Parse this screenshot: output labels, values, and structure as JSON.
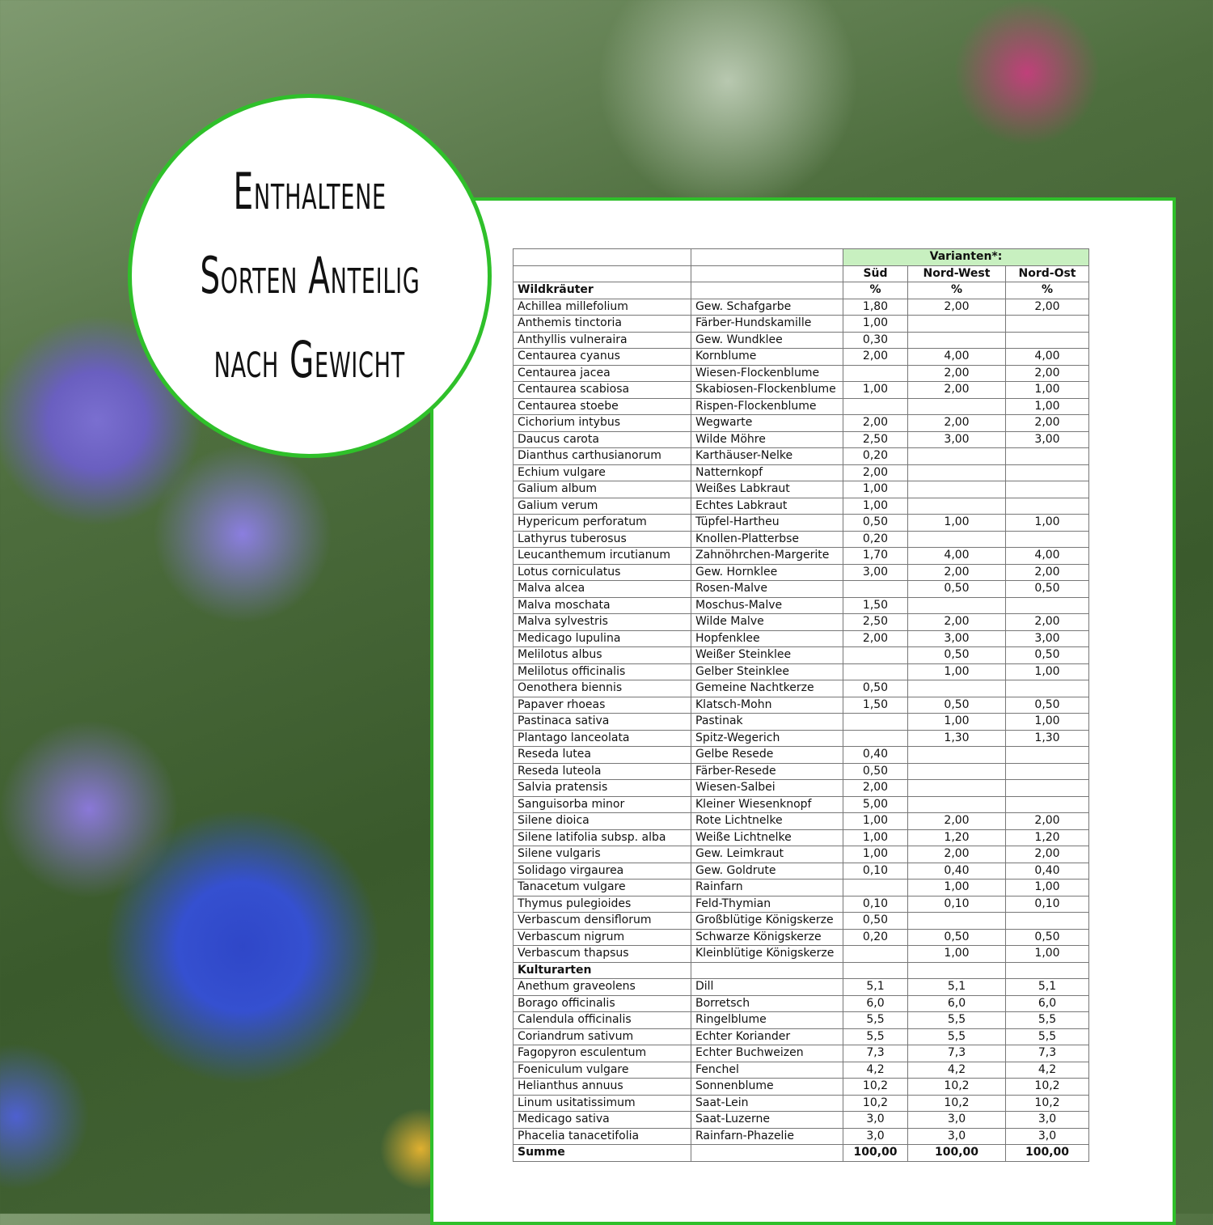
{
  "title_lines": [
    "Enthaltene",
    "Sorten Anteilig",
    "nach Gewicht"
  ],
  "colors": {
    "accent_green": "#2fc02a",
    "header_green": "#c8f0c0"
  },
  "table": {
    "variants_label": "Varianten*:",
    "columns": [
      "Süd",
      "Nord-West",
      "Nord-Ost"
    ],
    "unit": "%",
    "sections": [
      {
        "title": "Wildkräuter",
        "rows": [
          [
            "Achillea millefolium",
            "Gew. Schafgarbe",
            "1,80",
            "2,00",
            "2,00"
          ],
          [
            "Anthemis tinctoria",
            "Färber-Hundskamille",
            "1,00",
            "",
            ""
          ],
          [
            "Anthyllis vulneraira",
            "Gew. Wundklee",
            "0,30",
            "",
            ""
          ],
          [
            "Centaurea cyanus",
            "Kornblume",
            "2,00",
            "4,00",
            "4,00"
          ],
          [
            "Centaurea jacea",
            "Wiesen-Flockenblume",
            "",
            "2,00",
            "2,00"
          ],
          [
            "Centaurea scabiosa",
            "Skabiosen-Flockenblume",
            "1,00",
            "2,00",
            "1,00"
          ],
          [
            "Centaurea stoebe",
            "Rispen-Flockenblume",
            "",
            "",
            "1,00"
          ],
          [
            "Cichorium intybus",
            "Wegwarte",
            "2,00",
            "2,00",
            "2,00"
          ],
          [
            "Daucus carota",
            "Wilde Möhre",
            "2,50",
            "3,00",
            "3,00"
          ],
          [
            "Dianthus carthusianorum",
            "Karthäuser-Nelke",
            "0,20",
            "",
            ""
          ],
          [
            "Echium vulgare",
            "Natternkopf",
            "2,00",
            "",
            ""
          ],
          [
            "Galium album",
            "Weißes Labkraut",
            "1,00",
            "",
            ""
          ],
          [
            "Galium verum",
            "Echtes Labkraut",
            "1,00",
            "",
            ""
          ],
          [
            "Hypericum perforatum",
            "Tüpfel-Hartheu",
            "0,50",
            "1,00",
            "1,00"
          ],
          [
            "Lathyrus tuberosus",
            "Knollen-Platterbse",
            "0,20",
            "",
            ""
          ],
          [
            "Leucanthemum ircutianum",
            "Zahnöhrchen-Margerite",
            "1,70",
            "4,00",
            "4,00"
          ],
          [
            "Lotus corniculatus",
            "Gew. Hornklee",
            "3,00",
            "2,00",
            "2,00"
          ],
          [
            "Malva alcea",
            "Rosen-Malve",
            "",
            "0,50",
            "0,50"
          ],
          [
            "Malva moschata",
            "Moschus-Malve",
            "1,50",
            "",
            ""
          ],
          [
            "Malva sylvestris",
            "Wilde Malve",
            "2,50",
            "2,00",
            "2,00"
          ],
          [
            "Medicago lupulina",
            "Hopfenklee",
            "2,00",
            "3,00",
            "3,00"
          ],
          [
            "Melilotus albus",
            "Weißer Steinklee",
            "",
            "0,50",
            "0,50"
          ],
          [
            "Melilotus officinalis",
            "Gelber Steinklee",
            "",
            "1,00",
            "1,00"
          ],
          [
            "Oenothera biennis",
            "Gemeine Nachtkerze",
            "0,50",
            "",
            ""
          ],
          [
            "Papaver rhoeas",
            "Klatsch-Mohn",
            "1,50",
            "0,50",
            "0,50"
          ],
          [
            "Pastinaca sativa",
            "Pastinak",
            "",
            "1,00",
            "1,00"
          ],
          [
            "Plantago lanceolata",
            "Spitz-Wegerich",
            "",
            "1,30",
            "1,30"
          ],
          [
            "Reseda lutea",
            "Gelbe Resede",
            "0,40",
            "",
            ""
          ],
          [
            "Reseda luteola",
            "Färber-Resede",
            "0,50",
            "",
            ""
          ],
          [
            "Salvia pratensis",
            "Wiesen-Salbei",
            "2,00",
            "",
            ""
          ],
          [
            "Sanguisorba minor",
            "Kleiner Wiesenknopf",
            "5,00",
            "",
            ""
          ],
          [
            "Silene dioica",
            "Rote Lichtnelke",
            "1,00",
            "2,00",
            "2,00"
          ],
          [
            "Silene latifolia subsp. alba",
            "Weiße Lichtnelke",
            "1,00",
            "1,20",
            "1,20"
          ],
          [
            "Silene vulgaris",
            "Gew. Leimkraut",
            "1,00",
            "2,00",
            "2,00"
          ],
          [
            "Solidago virgaurea",
            "Gew. Goldrute",
            "0,10",
            "0,40",
            "0,40"
          ],
          [
            "Tanacetum vulgare",
            "Rainfarn",
            "",
            "1,00",
            "1,00"
          ],
          [
            "Thymus pulegioides",
            "Feld-Thymian",
            "0,10",
            "0,10",
            "0,10"
          ],
          [
            "Verbascum densiflorum",
            "Großblütige Königskerze",
            "0,50",
            "",
            ""
          ],
          [
            "Verbascum nigrum",
            "Schwarze Königskerze",
            "0,20",
            "0,50",
            "0,50"
          ],
          [
            "Verbascum thapsus",
            "Kleinblütige Königskerze",
            "",
            "1,00",
            "1,00"
          ]
        ]
      },
      {
        "title": "Kulturarten",
        "rows": [
          [
            "Anethum graveolens",
            "Dill",
            "5,1",
            "5,1",
            "5,1"
          ],
          [
            "Borago officinalis",
            "Borretsch",
            "6,0",
            "6,0",
            "6,0"
          ],
          [
            "Calendula officinalis",
            "Ringelblume",
            "5,5",
            "5,5",
            "5,5"
          ],
          [
            "Coriandrum sativum",
            "Echter Koriander",
            "5,5",
            "5,5",
            "5,5"
          ],
          [
            "Fagopyron esculentum",
            "Echter Buchweizen",
            "7,3",
            "7,3",
            "7,3"
          ],
          [
            "Foeniculum vulgare",
            "Fenchel",
            "4,2",
            "4,2",
            "4,2"
          ],
          [
            "Helianthus annuus",
            "Sonnenblume",
            "10,2",
            "10,2",
            "10,2"
          ],
          [
            "Linum usitatissimum",
            "Saat-Lein",
            "10,2",
            "10,2",
            "10,2"
          ],
          [
            "Medicago sativa",
            "Saat-Luzerne",
            "3,0",
            "3,0",
            "3,0"
          ],
          [
            "Phacelia tanacetifolia",
            "Rainfarn-Phazelie",
            "3,0",
            "3,0",
            "3,0"
          ]
        ]
      }
    ],
    "total": {
      "label": "Summe",
      "values": [
        "100,00",
        "100,00",
        "100,00"
      ]
    }
  }
}
